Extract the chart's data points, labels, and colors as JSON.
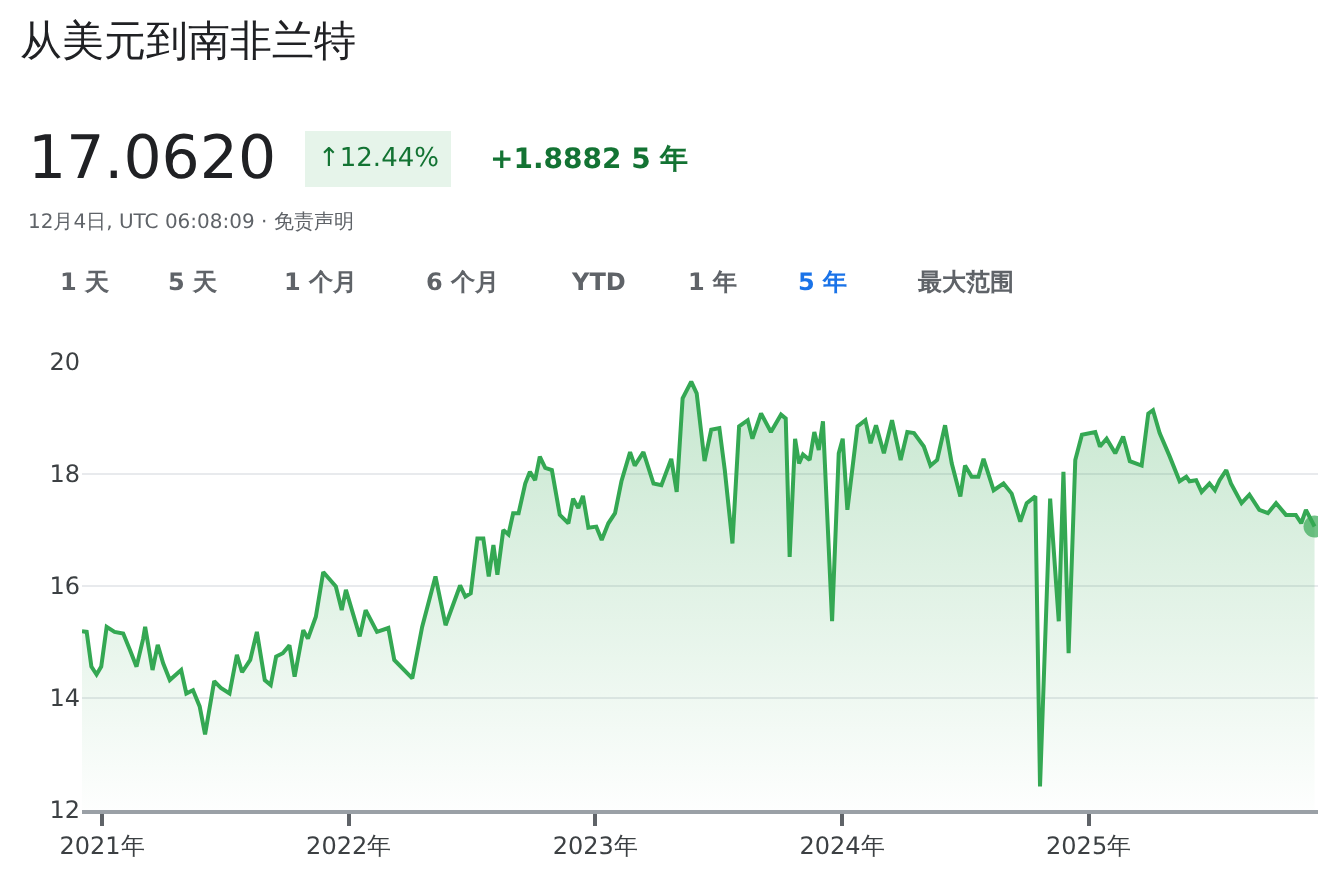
{
  "chart_data": {
    "type": "area",
    "title": "从美元到南非兰特",
    "annotations": [
      "17.0620",
      "↑12.44%",
      "+1.8882 5 年",
      "12月4日, UTC 06:08:09 · 免责声明",
      "1 天",
      "5 天",
      "1 个月",
      "6 个月",
      "YTD",
      "1 年",
      "5 年",
      "最大范围"
    ],
    "x": [
      2020.919,
      2020.938,
      2020.957,
      2020.978,
      2020.997,
      2021.019,
      2021.051,
      2021.086,
      2021.113,
      2021.14,
      2021.167,
      2021.175,
      2021.205,
      2021.226,
      2021.248,
      2021.275,
      2021.321,
      2021.342,
      2021.369,
      2021.396,
      2021.418,
      2021.455,
      2021.482,
      2021.517,
      2021.547,
      2021.568,
      2021.601,
      2021.628,
      2021.66,
      2021.684,
      2021.706,
      2021.733,
      2021.76,
      2021.781,
      2021.816,
      2021.835,
      2021.867,
      2021.897,
      2021.948,
      2021.972,
      2021.989,
      2022.045,
      2022.069,
      2022.115,
      2022.161,
      2022.185,
      2022.258,
      2022.298,
      2022.352,
      2022.393,
      2022.452,
      2022.473,
      2022.495,
      2022.522,
      2022.546,
      2022.568,
      2022.587,
      2022.603,
      2022.627,
      2022.648,
      2022.667,
      2022.689,
      2022.716,
      2022.735,
      2022.756,
      2022.775,
      2022.797,
      2022.824,
      2022.856,
      2022.891,
      2022.91,
      2022.931,
      2022.95,
      2022.972,
      2023.004,
      2023.026,
      2023.053,
      2023.08,
      2023.106,
      2023.141,
      2023.16,
      2023.195,
      2023.236,
      2023.268,
      2023.308,
      2023.33,
      2023.354,
      2023.389,
      2023.411,
      2023.443,
      2023.47,
      2023.503,
      2023.525,
      2023.556,
      2023.583,
      2023.618,
      2023.637,
      2023.672,
      2023.712,
      2023.753,
      2023.772,
      2023.788,
      2023.81,
      2023.826,
      2023.842,
      2023.869,
      2023.888,
      2023.906,
      2023.923,
      2023.96,
      2023.987,
      2024.003,
      2024.022,
      2024.063,
      2024.095,
      2024.116,
      2024.138,
      2024.17,
      2024.203,
      2024.238,
      2024.265,
      2024.292,
      2024.332,
      2024.359,
      2024.386,
      2024.418,
      2024.445,
      2024.48,
      2024.499,
      2024.526,
      2024.553,
      2024.574,
      2024.615,
      2024.655,
      2024.688,
      2024.723,
      2024.749,
      2024.784,
      2024.803,
      2024.844,
      2024.879,
      2024.898,
      2024.919,
      2024.946,
      2024.973,
      2025.027,
      2025.046,
      2025.073,
      2025.108,
      2025.14,
      2025.167,
      2025.215,
      2025.242,
      2025.261,
      2025.288,
      2025.329,
      2025.369,
      2025.396,
      2025.409,
      2025.436,
      2025.458,
      2025.49,
      2025.512,
      2025.531,
      2025.558,
      2025.577,
      2025.62,
      2025.652,
      2025.692,
      2025.727,
      2025.76,
      2025.8,
      2025.84,
      2025.862,
      2025.881,
      2025.916
    ],
    "series": [
      {
        "color": "#34a853",
        "values": [
          15.19,
          15.18,
          14.56,
          14.42,
          14.56,
          15.27,
          15.18,
          15.15,
          14.86,
          14.56,
          15.06,
          15.27,
          14.5,
          14.95,
          14.62,
          14.32,
          14.5,
          14.08,
          14.14,
          13.85,
          13.35,
          14.3,
          14.18,
          14.08,
          14.77,
          14.46,
          14.68,
          15.18,
          14.32,
          14.23,
          14.74,
          14.8,
          14.94,
          14.38,
          15.21,
          15.06,
          15.45,
          16.25,
          15.99,
          15.57,
          15.93,
          15.1,
          15.57,
          15.18,
          15.25,
          14.68,
          14.35,
          15.27,
          16.17,
          15.3,
          16.01,
          15.81,
          15.87,
          16.85,
          16.85,
          16.17,
          16.73,
          16.2,
          17.0,
          16.92,
          17.3,
          17.3,
          17.83,
          18.04,
          17.89,
          18.31,
          18.11,
          18.07,
          17.27,
          17.12,
          17.56,
          17.39,
          17.61,
          17.04,
          17.06,
          16.82,
          17.12,
          17.3,
          17.87,
          18.39,
          18.15,
          18.39,
          17.83,
          17.8,
          18.27,
          17.68,
          19.35,
          19.65,
          19.44,
          18.23,
          18.79,
          18.82,
          18.07,
          16.76,
          18.85,
          18.96,
          18.63,
          19.08,
          18.75,
          19.06,
          18.99,
          16.52,
          18.63,
          18.19,
          18.35,
          18.25,
          18.75,
          18.43,
          18.94,
          15.37,
          18.37,
          18.63,
          17.36,
          18.85,
          18.96,
          18.55,
          18.87,
          18.37,
          18.96,
          18.25,
          18.75,
          18.73,
          18.49,
          18.15,
          18.25,
          18.87,
          18.19,
          17.6,
          18.15,
          17.95,
          17.95,
          18.27,
          17.71,
          17.83,
          17.65,
          17.15,
          17.48,
          17.6,
          12.42,
          17.56,
          15.37,
          18.04,
          14.8,
          18.25,
          18.7,
          18.75,
          18.49,
          18.63,
          18.37,
          18.67,
          18.23,
          18.15,
          19.08,
          19.14,
          18.73,
          18.31,
          17.87,
          17.95,
          17.87,
          17.89,
          17.68,
          17.83,
          17.71,
          17.89,
          18.07,
          17.83,
          17.48,
          17.63,
          17.36,
          17.3,
          17.48,
          17.27,
          17.27,
          17.12,
          17.36,
          17.062
        ]
      }
    ],
    "xlim": [
      2020.919,
      2025.93
    ],
    "xticks": [
      {
        "value": 2021,
        "label": "2021年"
      },
      {
        "value": 2022,
        "label": "2022年"
      },
      {
        "value": 2023,
        "label": "2023年"
      },
      {
        "value": 2024,
        "label": "2024年"
      },
      {
        "value": 2025,
        "label": "2025年"
      }
    ],
    "ylim": [
      12,
      20
    ],
    "yticks": [
      12,
      14,
      16,
      18,
      20
    ],
    "grid": "y"
  }
}
